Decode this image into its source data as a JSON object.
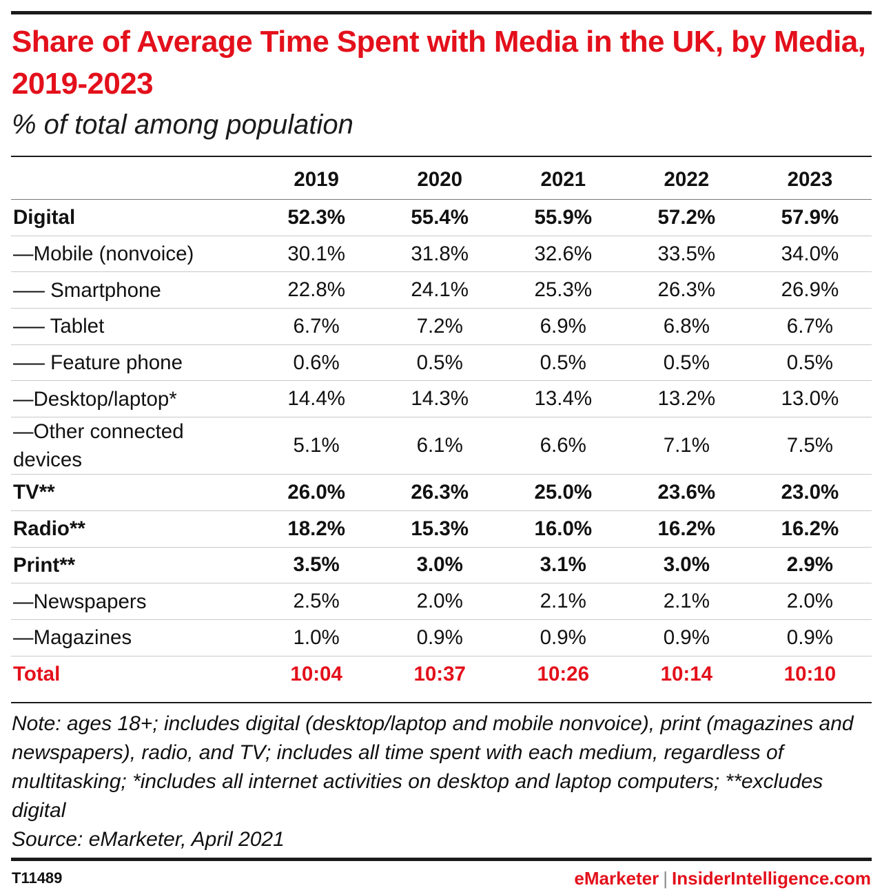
{
  "chart_data": {
    "type": "table",
    "title": "Share of Average Time Spent with Media in the UK, by Media, 2019-2023",
    "subtitle": "% of total among population",
    "columns": [
      "2019",
      "2020",
      "2021",
      "2022",
      "2023"
    ],
    "rows": [
      {
        "label": "Digital",
        "style": "bold",
        "values": [
          "52.3%",
          "55.4%",
          "55.9%",
          "57.2%",
          "57.9%"
        ]
      },
      {
        "label": "—Mobile (nonvoice)",
        "style": "normal",
        "values": [
          "30.1%",
          "31.8%",
          "32.6%",
          "33.5%",
          "34.0%"
        ]
      },
      {
        "label": "—– Smartphone",
        "style": "normal",
        "values": [
          "22.8%",
          "24.1%",
          "25.3%",
          "26.3%",
          "26.9%"
        ]
      },
      {
        "label": "—– Tablet",
        "style": "normal",
        "values": [
          "6.7%",
          "7.2%",
          "6.9%",
          "6.8%",
          "6.7%"
        ]
      },
      {
        "label": "—– Feature phone",
        "style": "normal",
        "values": [
          "0.6%",
          "0.5%",
          "0.5%",
          "0.5%",
          "0.5%"
        ]
      },
      {
        "label": "—Desktop/laptop*",
        "style": "normal",
        "values": [
          "14.4%",
          "14.3%",
          "13.4%",
          "13.2%",
          "13.0%"
        ]
      },
      {
        "label": "—Other connected devices",
        "style": "normal",
        "values": [
          "5.1%",
          "6.1%",
          "6.6%",
          "7.1%",
          "7.5%"
        ]
      },
      {
        "label": "TV**",
        "style": "bold",
        "values": [
          "26.0%",
          "26.3%",
          "25.0%",
          "23.6%",
          "23.0%"
        ]
      },
      {
        "label": "Radio**",
        "style": "bold",
        "values": [
          "18.2%",
          "15.3%",
          "16.0%",
          "16.2%",
          "16.2%"
        ]
      },
      {
        "label": "Print**",
        "style": "bold",
        "values": [
          "3.5%",
          "3.0%",
          "3.1%",
          "3.0%",
          "2.9%"
        ]
      },
      {
        "label": "—Newspapers",
        "style": "normal",
        "values": [
          "2.5%",
          "2.0%",
          "2.1%",
          "2.1%",
          "2.0%"
        ]
      },
      {
        "label": "—Magazines",
        "style": "normal",
        "values": [
          "1.0%",
          "0.9%",
          "0.9%",
          "0.9%",
          "0.9%"
        ]
      },
      {
        "label": "Total",
        "style": "total",
        "values": [
          "10:04",
          "10:37",
          "10:26",
          "10:14",
          "10:10"
        ]
      }
    ],
    "note": "Note: ages 18+; includes digital (desktop/laptop and mobile nonvoice), print (magazines and newspapers), radio, and TV; includes all time spent with each medium, regardless of multitasking; *includes all internet activities on desktop and laptop computers; **excludes digital",
    "source": "Source: eMarketer, April 2021"
  },
  "footer": {
    "chart_id": "T11489",
    "brand_primary": "eMarketer",
    "separator": "|",
    "brand_secondary": "InsiderIntelligence.com"
  },
  "colors": {
    "accent": "#e3101b",
    "text": "#111111",
    "rule": "#1a1a1a"
  }
}
